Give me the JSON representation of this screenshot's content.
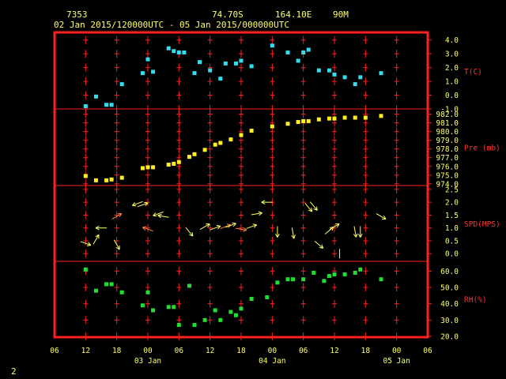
{
  "header": {
    "station_id": "7353",
    "latitude": "74.70S",
    "longitude": "164.10E",
    "elevation": "90M",
    "period": "02 Jan 2015/120000UTC - 05 Jan 2015/000000UTC"
  },
  "page_number": "2",
  "colors": {
    "background": "#000000",
    "frame": "#ff2020",
    "header_text": "#ffff66",
    "panel_label": "#ff3333",
    "temperature": "#33ddee",
    "pressure": "#ffee22",
    "wind": "#ffff66",
    "wind_alt": "#ff8844",
    "humidity": "#22dd33"
  },
  "chart_data": {
    "type": "scatter",
    "x_unit": "hours since 02 Jan 2015 06UTC",
    "x_ticks": [
      "06",
      "12",
      "18",
      "00",
      "06",
      "12",
      "18",
      "00",
      "06",
      "12",
      "18",
      "00",
      "06"
    ],
    "x_day_labels": [
      {
        "label": "03 Jan",
        "at": 18
      },
      {
        "label": "04 Jan",
        "at": 42
      },
      {
        "label": "05 Jan",
        "at": 66
      }
    ],
    "xlim": [
      0,
      72
    ],
    "grid": true,
    "panels": [
      {
        "id": "temperature",
        "label": "T(C)",
        "ylim": [
          -1.0,
          4.5
        ],
        "ticks": [
          "4.0",
          "3.0",
          "2.0",
          "1.0",
          "0.0",
          "-1.0"
        ],
        "tick_values": [
          4,
          3,
          2,
          1,
          0,
          -1
        ],
        "color": "#33ddee",
        "points": [
          [
            6,
            -0.8
          ],
          [
            8,
            -0.1
          ],
          [
            10,
            -0.7
          ],
          [
            11,
            -0.7
          ],
          [
            13,
            0.8
          ],
          [
            17,
            1.6
          ],
          [
            18,
            2.6
          ],
          [
            19,
            1.7
          ],
          [
            22,
            3.4
          ],
          [
            23,
            3.2
          ],
          [
            24,
            3.1
          ],
          [
            25,
            3.1
          ],
          [
            27,
            1.6
          ],
          [
            28,
            2.4
          ],
          [
            30,
            1.8
          ],
          [
            32,
            1.2
          ],
          [
            33,
            2.3
          ],
          [
            35,
            2.3
          ],
          [
            36,
            2.5
          ],
          [
            38,
            2.1
          ],
          [
            42,
            3.6
          ],
          [
            45,
            3.1
          ],
          [
            47,
            2.5
          ],
          [
            48,
            3.1
          ],
          [
            49,
            3.3
          ],
          [
            51,
            1.8
          ],
          [
            53,
            1.8
          ],
          [
            54,
            1.5
          ],
          [
            56,
            1.3
          ],
          [
            58,
            0.8
          ],
          [
            59,
            1.3
          ],
          [
            63,
            1.6
          ]
        ]
      },
      {
        "id": "pressure",
        "label": "Pre (mb)",
        "ylim": [
          973.8,
          982.6
        ],
        "ticks": [
          "982.0",
          "981.0",
          "980.0",
          "979.0",
          "978.0",
          "977.0",
          "976.0",
          "975.0",
          "974.0"
        ],
        "tick_values": [
          982,
          981,
          980,
          979,
          978,
          977,
          976,
          975,
          974
        ],
        "color": "#ffee22",
        "points": [
          [
            6,
            974.9
          ],
          [
            8,
            974.4
          ],
          [
            10,
            974.4
          ],
          [
            11,
            974.5
          ],
          [
            13,
            974.7
          ],
          [
            17,
            975.8
          ],
          [
            18,
            975.9
          ],
          [
            19,
            975.9
          ],
          [
            22,
            976.2
          ],
          [
            23,
            976.3
          ],
          [
            24,
            976.5
          ],
          [
            26,
            977.1
          ],
          [
            27,
            977.4
          ],
          [
            29,
            977.9
          ],
          [
            31,
            978.5
          ],
          [
            32,
            978.7
          ],
          [
            34,
            979.1
          ],
          [
            36,
            979.6
          ],
          [
            38,
            980.1
          ],
          [
            42,
            980.6
          ],
          [
            45,
            980.9
          ],
          [
            47,
            981.1
          ],
          [
            48,
            981.2
          ],
          [
            49,
            981.2
          ],
          [
            51,
            981.4
          ],
          [
            53,
            981.5
          ],
          [
            54,
            981.5
          ],
          [
            56,
            981.6
          ],
          [
            58,
            981.6
          ],
          [
            60,
            981.6
          ],
          [
            63,
            981.8
          ]
        ]
      },
      {
        "id": "wind",
        "label": "SPD(MPS)",
        "ylim": [
          -0.3,
          2.65
        ],
        "ticks": [
          "2.5",
          "2.0",
          "1.5",
          "1.0",
          "0.5",
          "0.0"
        ],
        "tick_values": [
          2.5,
          2.0,
          1.5,
          1.0,
          0.5,
          0.0
        ],
        "color": "#ffff66",
        "arrows": [
          {
            "x": 6,
            "spd": 0.4,
            "dir": 290,
            "c": 0
          },
          {
            "x": 8,
            "spd": 0.55,
            "dir": 210,
            "c": 0
          },
          {
            "x": 9,
            "spd": 1.0,
            "dir": 90,
            "c": 0
          },
          {
            "x": 12,
            "spd": 1.45,
            "dir": 240,
            "c": 1
          },
          {
            "x": 12,
            "spd": 0.35,
            "dir": 330,
            "c": 0
          },
          {
            "x": 16,
            "spd": 1.95,
            "dir": 70,
            "c": 0
          },
          {
            "x": 17,
            "spd": 1.9,
            "dir": 250,
            "c": 0
          },
          {
            "x": 18,
            "spd": 0.95,
            "dir": 110,
            "c": 1
          },
          {
            "x": 20,
            "spd": 1.55,
            "dir": 70,
            "c": 0
          },
          {
            "x": 21,
            "spd": 1.45,
            "dir": 100,
            "c": 0
          },
          {
            "x": 26,
            "spd": 0.85,
            "dir": 320,
            "c": 0
          },
          {
            "x": 29,
            "spd": 1.05,
            "dir": 240,
            "c": 0
          },
          {
            "x": 31,
            "spd": 1.0,
            "dir": 250,
            "c": 0
          },
          {
            "x": 33,
            "spd": 1.05,
            "dir": 250,
            "c": 1
          },
          {
            "x": 34,
            "spd": 1.1,
            "dir": 250,
            "c": 0
          },
          {
            "x": 36,
            "spd": 0.95,
            "dir": 280,
            "c": 1
          },
          {
            "x": 38,
            "spd": 1.05,
            "dir": 250,
            "c": 0
          },
          {
            "x": 39,
            "spd": 1.55,
            "dir": 260,
            "c": 0
          },
          {
            "x": 41,
            "spd": 2.0,
            "dir": 90,
            "c": 0
          },
          {
            "x": 43,
            "spd": 0.85,
            "dir": 0,
            "c": 0
          },
          {
            "x": 46,
            "spd": 0.8,
            "dir": 350,
            "c": 0
          },
          {
            "x": 49,
            "spd": 1.8,
            "dir": 320,
            "c": 0
          },
          {
            "x": 50,
            "spd": 1.85,
            "dir": 320,
            "c": 0
          },
          {
            "x": 51,
            "spd": 0.35,
            "dir": 310,
            "c": 0
          },
          {
            "x": 53,
            "spd": 0.9,
            "dir": 230,
            "c": 0
          },
          {
            "x": 54,
            "spd": 1.05,
            "dir": 240,
            "c": 0
          },
          {
            "x": 55,
            "spd": 0.0,
            "dir": 0,
            "c": 0
          },
          {
            "x": 58,
            "spd": 0.85,
            "dir": 350,
            "c": 0
          },
          {
            "x": 59,
            "spd": 0.85,
            "dir": 0,
            "c": 0
          },
          {
            "x": 63,
            "spd": 1.45,
            "dir": 300,
            "c": 0
          }
        ]
      },
      {
        "id": "humidity",
        "label": "RH(%)",
        "ylim": [
          20,
          66
        ],
        "ticks": [
          "60.0",
          "50.0",
          "40.0",
          "30.0",
          "20.0"
        ],
        "tick_values": [
          60,
          50,
          40,
          30,
          20
        ],
        "color": "#22dd33",
        "points": [
          [
            6,
            61
          ],
          [
            8,
            48
          ],
          [
            10,
            52
          ],
          [
            11,
            52
          ],
          [
            13,
            47
          ],
          [
            17,
            39
          ],
          [
            18,
            47
          ],
          [
            19,
            36
          ],
          [
            22,
            38
          ],
          [
            23,
            38
          ],
          [
            24,
            27
          ],
          [
            26,
            51
          ],
          [
            27,
            27
          ],
          [
            29,
            30
          ],
          [
            31,
            36
          ],
          [
            32,
            30
          ],
          [
            34,
            35
          ],
          [
            35,
            33
          ],
          [
            36,
            37
          ],
          [
            38,
            43
          ],
          [
            41,
            44
          ],
          [
            43,
            53
          ],
          [
            45,
            55
          ],
          [
            46,
            55
          ],
          [
            48,
            55
          ],
          [
            50,
            59
          ],
          [
            52,
            54
          ],
          [
            53,
            57
          ],
          [
            54,
            58
          ],
          [
            56,
            58
          ],
          [
            58,
            59
          ],
          [
            59,
            61
          ],
          [
            63,
            55
          ]
        ]
      }
    ]
  }
}
